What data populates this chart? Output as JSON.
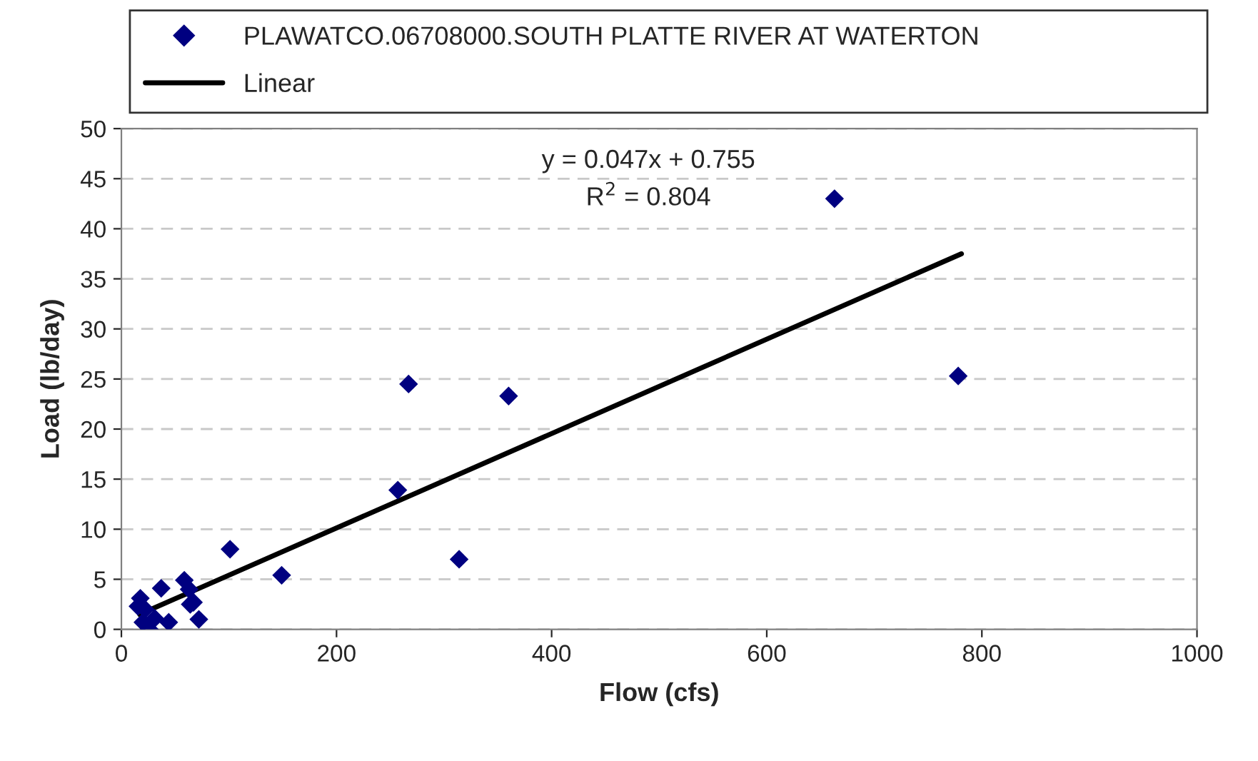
{
  "chart_data": {
    "type": "scatter",
    "xlabel": "Flow (cfs)",
    "ylabel": "Load (lb/day)",
    "xlim": [
      0,
      1000
    ],
    "xticks": [
      0,
      200,
      400,
      600,
      800,
      1000
    ],
    "ylim": [
      0,
      50
    ],
    "yticks": [
      0,
      5,
      10,
      15,
      20,
      25,
      30,
      35,
      40,
      45,
      50
    ],
    "grid": "y",
    "legend": "top",
    "annotations": [
      "y = 0.047x + 0.755",
      "R$^{2}$ = 0.804"
    ],
    "series": [
      {
        "name": "PLAWATCO.06708000.SOUTH PLATTE RIVER AT WATERTON",
        "marker": "diamond",
        "color": "#000080",
        "x": [
          663,
          778,
          267,
          360,
          257,
          314,
          101,
          149,
          17.6,
          15.4,
          37,
          58.5,
          63,
          64,
          67,
          72,
          44,
          26,
          20,
          31,
          22
        ],
        "values": [
          43.0,
          25.3,
          24.5,
          23.3,
          13.9,
          7.0,
          8.0,
          5.4,
          3.1,
          2.3,
          4.1,
          4.9,
          4.0,
          2.5,
          2.7,
          1.0,
          0.7,
          0.0,
          0.7,
          1.1,
          2.0
        ]
      },
      {
        "name": "Linear",
        "type": "line",
        "color": "#000000",
        "x": [
          17,
          781
        ],
        "values": [
          1.5,
          37.5
        ]
      }
    ]
  }
}
